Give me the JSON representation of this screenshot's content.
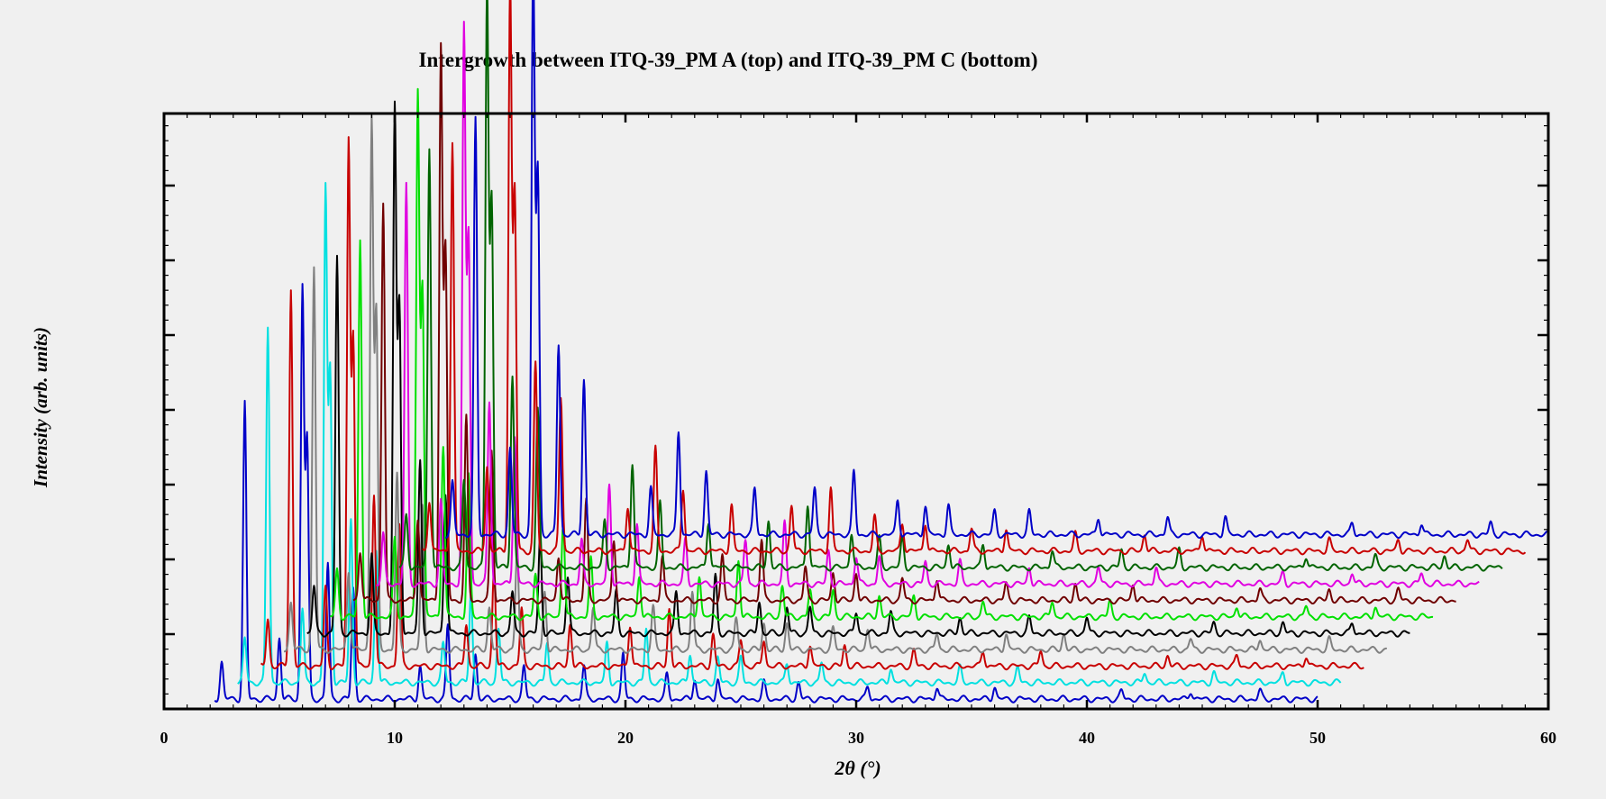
{
  "chart_data": {
    "type": "line",
    "title": "Intergrowth between ITQ-39_PM A (top) and ITQ-39_PM C (bottom)",
    "xlabel": "2θ (°)",
    "ylabel": "Intensity (arb. units)",
    "xlim": [
      0,
      60
    ],
    "x_ticks": [
      0,
      10,
      20,
      30,
      40,
      50,
      60
    ],
    "y_tick_labels": false,
    "grid": false,
    "legend": "none",
    "stacking": "waterfall offset: each successive pattern shifted +1.0° in 2θ and raised in intensity",
    "base_peaks": [
      {
        "x": 2.5,
        "intensity": 0.09
      },
      {
        "x": 3.5,
        "intensity": 0.72
      },
      {
        "x": 5.0,
        "intensity": 0.15
      },
      {
        "x": 6.0,
        "intensity": 1.0
      },
      {
        "x": 6.2,
        "intensity": 0.63
      },
      {
        "x": 7.1,
        "intensity": 0.33
      },
      {
        "x": 8.2,
        "intensity": 0.27
      },
      {
        "x": 11.1,
        "intensity": 0.08
      },
      {
        "x": 12.3,
        "intensity": 0.18
      },
      {
        "x": 13.5,
        "intensity": 0.11
      },
      {
        "x": 15.6,
        "intensity": 0.08
      },
      {
        "x": 18.2,
        "intensity": 0.08
      },
      {
        "x": 19.9,
        "intensity": 0.11
      },
      {
        "x": 21.8,
        "intensity": 0.06
      },
      {
        "x": 23.0,
        "intensity": 0.05
      },
      {
        "x": 24.0,
        "intensity": 0.05
      },
      {
        "x": 26.0,
        "intensity": 0.04
      },
      {
        "x": 27.5,
        "intensity": 0.04
      },
      {
        "x": 30.5,
        "intensity": 0.03
      },
      {
        "x": 33.5,
        "intensity": 0.03
      },
      {
        "x": 36.0,
        "intensity": 0.03
      },
      {
        "x": 41.5,
        "intensity": 0.02
      },
      {
        "x": 44.5,
        "intensity": 0.02
      },
      {
        "x": 47.5,
        "intensity": 0.02
      }
    ],
    "series": [
      {
        "color": "#0000c8",
        "x_start": 2.2,
        "x_end": 50.0,
        "offset_x": 0.0,
        "baseline": 0.0,
        "peak_scale": 0.55
      },
      {
        "color": "#00e0e0",
        "x_start": 3.2,
        "x_end": 51.0,
        "offset_x": 1.0,
        "baseline": 0.022,
        "peak_scale": 0.66
      },
      {
        "color": "#c80000",
        "x_start": 4.2,
        "x_end": 52.0,
        "offset_x": 2.0,
        "baseline": 0.044,
        "peak_scale": 0.7
      },
      {
        "color": "#808080",
        "x_start": 5.2,
        "x_end": 53.0,
        "offset_x": 3.0,
        "baseline": 0.066,
        "peak_scale": 0.71
      },
      {
        "color": "#000000",
        "x_start": 6.2,
        "x_end": 54.0,
        "offset_x": 4.0,
        "baseline": 0.088,
        "peak_scale": 0.7
      },
      {
        "color": "#00e000",
        "x_start": 7.2,
        "x_end": 55.0,
        "offset_x": 5.0,
        "baseline": 0.11,
        "peak_scale": 0.7
      },
      {
        "color": "#700000",
        "x_start": 8.2,
        "x_end": 56.0,
        "offset_x": 6.0,
        "baseline": 0.132,
        "peak_scale": 0.74
      },
      {
        "color": "#e000e0",
        "x_start": 9.2,
        "x_end": 57.0,
        "offset_x": 7.0,
        "baseline": 0.154,
        "peak_scale": 0.74
      },
      {
        "color": "#006400",
        "x_start": 10.2,
        "x_end": 58.0,
        "offset_x": 8.0,
        "baseline": 0.176,
        "peak_scale": 0.78
      },
      {
        "color": "#c80000",
        "x_start": 11.2,
        "x_end": 59.0,
        "offset_x": 9.0,
        "baseline": 0.198,
        "peak_scale": 0.76
      },
      {
        "color": "#0000c8",
        "x_start": 12.2,
        "x_end": 60.0,
        "offset_x": 10.0,
        "baseline": 0.22,
        "peak_scale": 0.77
      }
    ]
  }
}
